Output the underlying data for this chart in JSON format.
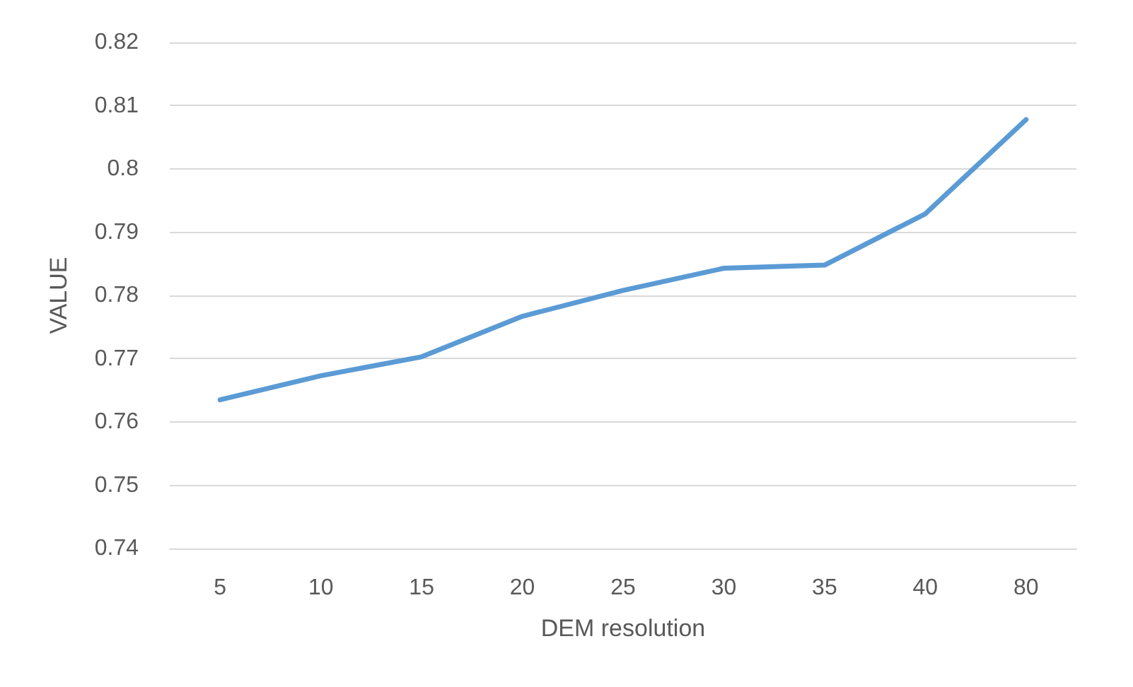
{
  "chart_data": {
    "type": "line",
    "xlabel": "DEM resolution",
    "ylabel": "VALUE",
    "categories": [
      "5",
      "10",
      "15",
      "20",
      "25",
      "30",
      "35",
      "40",
      "80"
    ],
    "series": [
      {
        "color": "#5b9bd5",
        "values": [
          0.7635,
          0.7673,
          0.7703,
          0.7767,
          0.7808,
          0.7843,
          0.7848,
          0.7929,
          0.8078
        ]
      }
    ],
    "ylim": [
      0.74,
      0.82
    ],
    "yticks": [
      0.74,
      0.75,
      0.76,
      0.77,
      0.78,
      0.79,
      0.8,
      0.81,
      0.82
    ],
    "grid": "y",
    "marker": "none",
    "line_style": "solid"
  }
}
